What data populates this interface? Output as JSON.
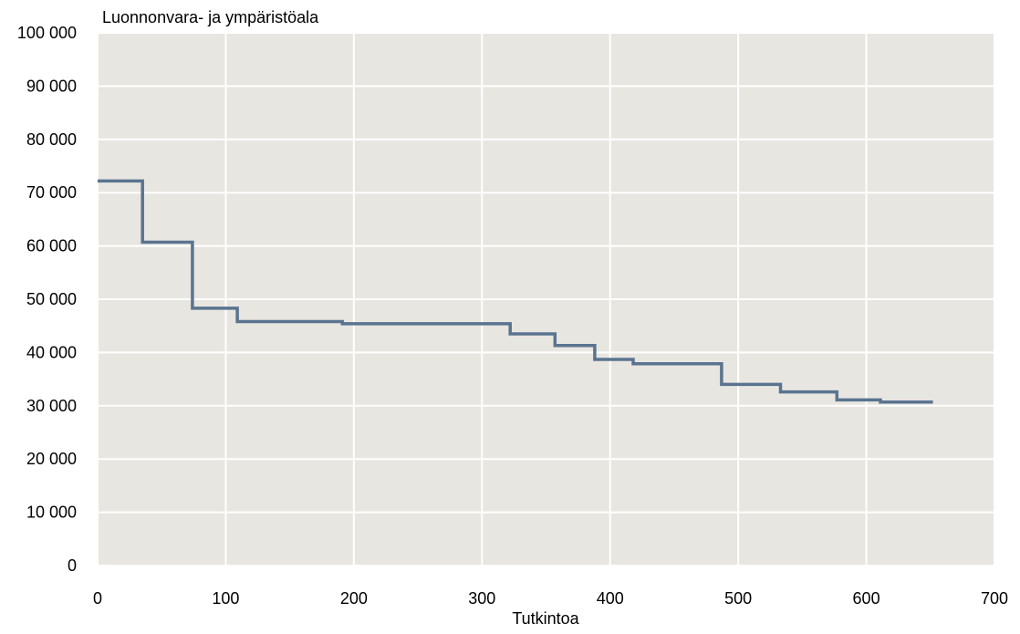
{
  "chart_data": {
    "type": "line",
    "title": "Luonnonvara- ja ympäristöala",
    "xlabel": "Tutkintoa",
    "ylabel": "",
    "xlim": [
      0,
      700
    ],
    "ylim": [
      0,
      100000
    ],
    "x_ticks": [
      0,
      100,
      200,
      300,
      400,
      500,
      600,
      700
    ],
    "y_ticks": [
      0,
      10000,
      20000,
      30000,
      40000,
      50000,
      60000,
      70000,
      80000,
      90000,
      100000
    ],
    "x_tick_labels": [
      "0",
      "100",
      "200",
      "300",
      "400",
      "500",
      "600",
      "700"
    ],
    "y_tick_labels": [
      "0",
      "10 000",
      "20 000",
      "30 000",
      "40 000",
      "50 000",
      "60 000",
      "70 000",
      "80 000",
      "90 000",
      "100 000"
    ],
    "grid": true,
    "legend": "none",
    "step": true,
    "series": [
      {
        "x": [
          0,
          35,
          35,
          74,
          74,
          109,
          109,
          191,
          191,
          322,
          322,
          357,
          357,
          388,
          388,
          418,
          418,
          487,
          487,
          533,
          533,
          577,
          577,
          611,
          611,
          652
        ],
        "y": [
          72200,
          72200,
          60700,
          60700,
          48300,
          48300,
          45800,
          45800,
          45400,
          45400,
          43500,
          43500,
          41300,
          41300,
          38700,
          38700,
          37900,
          37900,
          34000,
          34000,
          32600,
          32600,
          31100,
          31100,
          30700,
          30700
        ]
      }
    ],
    "colors": {
      "plot_background": "#e8e6e0",
      "grid": "#ffffff",
      "line": "#5a7490"
    }
  }
}
